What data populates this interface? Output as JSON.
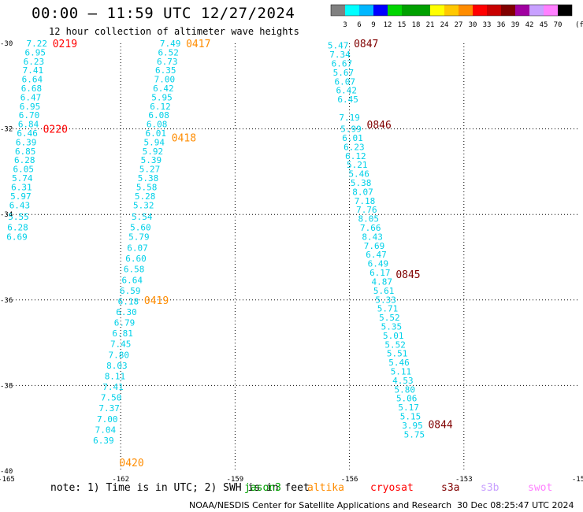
{
  "header": {
    "title": "00:00 – 11:59 UTC 12/27/2024",
    "subtitle": "12 hour collection of altimeter wave heights"
  },
  "colorbar": {
    "unit": "(ft)",
    "labels": [
      "3",
      "6",
      "9",
      "12",
      "15",
      "18",
      "21",
      "24",
      "27",
      "30",
      "33",
      "36",
      "39",
      "42",
      "45",
      "70"
    ],
    "colors": [
      "#808080",
      "#00ffff",
      "#00b7ff",
      "#0000ff",
      "#00d600",
      "#00a000",
      "#00a000",
      "#ffff00",
      "#ffc800",
      "#ff8c00",
      "#ff0000",
      "#c80000",
      "#800000",
      "#a000a0",
      "#c8a0ff",
      "#ff80ff",
      "#000000"
    ]
  },
  "footer": {
    "note": "note: 1) Time is in UTC; 2) SWH is in feet",
    "credit": "NOAA/NESDIS Center for Satellite Applications and Research",
    "timestamp": "30 Dec 08:25:47 UTC 2024"
  },
  "legend": [
    {
      "name": "jason3",
      "color": "#00a000"
    },
    {
      "name": "altika",
      "color": "#ff8c00"
    },
    {
      "name": "cryosat",
      "color": "#ff0000"
    },
    {
      "name": "s3a",
      "color": "#800000"
    },
    {
      "name": "s3b",
      "color": "#c8a0ff"
    },
    {
      "name": "swot",
      "color": "#ff80ff"
    }
  ],
  "map": {
    "x_ticks": [
      "-165",
      "-162",
      "-159",
      "-156",
      "-153",
      "-15"
    ],
    "y_ticks": [
      "-30",
      "-32",
      "-34",
      "-36",
      "-38",
      "-40"
    ],
    "lon_range": [
      -165,
      -150
    ],
    "lat_range": [
      -30,
      -40
    ]
  },
  "tracks": [
    {
      "satellite": "cryosat",
      "color": "#ff0000",
      "times": [
        {
          "label": "0219",
          "lat": -30.0
        },
        {
          "label": "0220",
          "lat": -32.0
        }
      ],
      "points": [
        {
          "lon": -164.2,
          "lat": -30.0,
          "value": "7.22",
          "color": "#00d0e8"
        },
        {
          "lon": -164.24,
          "lat": -30.21,
          "value": "6.95",
          "color": "#00d0e8"
        },
        {
          "lon": -164.28,
          "lat": -30.42,
          "value": "6.23",
          "color": "#00d0e8"
        },
        {
          "lon": -164.3,
          "lat": -30.63,
          "value": "7.41",
          "color": "#00d0e8"
        },
        {
          "lon": -164.32,
          "lat": -30.84,
          "value": "6.64",
          "color": "#00d0e8"
        },
        {
          "lon": -164.34,
          "lat": -31.05,
          "value": "6.68",
          "color": "#00d0e8"
        },
        {
          "lon": -164.36,
          "lat": -31.26,
          "value": "6.47",
          "color": "#00d0e8"
        },
        {
          "lon": -164.38,
          "lat": -31.47,
          "value": "6.95",
          "color": "#00d0e8"
        },
        {
          "lon": -164.4,
          "lat": -31.68,
          "value": "6.70",
          "color": "#00d0e8"
        },
        {
          "lon": -164.42,
          "lat": -31.89,
          "value": "6.84",
          "color": "#00d0e8"
        },
        {
          "lon": -164.45,
          "lat": -32.1,
          "value": "6.46",
          "color": "#00d0e8"
        },
        {
          "lon": -164.48,
          "lat": -32.31,
          "value": "6.39",
          "color": "#00d0e8"
        },
        {
          "lon": -164.5,
          "lat": -32.52,
          "value": "6.85",
          "color": "#00d0e8"
        },
        {
          "lon": -164.52,
          "lat": -32.73,
          "value": "6.28",
          "color": "#00d0e8"
        },
        {
          "lon": -164.55,
          "lat": -32.94,
          "value": "6.05",
          "color": "#00d0e8"
        },
        {
          "lon": -164.58,
          "lat": -33.15,
          "value": "5.74",
          "color": "#00d0e8"
        },
        {
          "lon": -164.6,
          "lat": -33.36,
          "value": "6.31",
          "color": "#00d0e8"
        },
        {
          "lon": -164.62,
          "lat": -33.57,
          "value": "5.97",
          "color": "#00d0e8"
        },
        {
          "lon": -164.65,
          "lat": -33.78,
          "value": "6.43",
          "color": "#00d0e8"
        },
        {
          "lon": -164.68,
          "lat": -34.05,
          "value": "5.55",
          "color": "#00d0e8"
        },
        {
          "lon": -164.7,
          "lat": -34.3,
          "value": "6.28",
          "color": "#00d0e8"
        },
        {
          "lon": -164.72,
          "lat": -34.52,
          "value": "6.69",
          "color": "#00d0e8"
        }
      ]
    },
    {
      "satellite": "altika",
      "color": "#ff8c00",
      "times": [
        {
          "label": "0417",
          "lat": -30.0
        },
        {
          "label": "0418",
          "lat": -32.2
        },
        {
          "label": "0419",
          "lat": -36.0
        },
        {
          "label": "0420",
          "lat": -39.8
        }
      ],
      "points": [
        {
          "lon": -160.7,
          "lat": -30.0,
          "value": "7.49",
          "color": "#00d0e8"
        },
        {
          "lon": -160.75,
          "lat": -30.21,
          "value": "6.52",
          "color": "#00d0e8"
        },
        {
          "lon": -160.78,
          "lat": -30.42,
          "value": "6.73",
          "color": "#00d0e8"
        },
        {
          "lon": -160.82,
          "lat": -30.63,
          "value": "6.35",
          "color": "#00d0e8"
        },
        {
          "lon": -160.85,
          "lat": -30.84,
          "value": "7.00",
          "color": "#00d0e8"
        },
        {
          "lon": -160.88,
          "lat": -31.05,
          "value": "6.42",
          "color": "#00d0e8"
        },
        {
          "lon": -160.92,
          "lat": -31.26,
          "value": "5.95",
          "color": "#00d0e8"
        },
        {
          "lon": -160.96,
          "lat": -31.47,
          "value": "6.12",
          "color": "#00d0e8"
        },
        {
          "lon": -161.0,
          "lat": -31.68,
          "value": "6.08",
          "color": "#00d0e8"
        },
        {
          "lon": -161.05,
          "lat": -31.89,
          "value": "6.08",
          "color": "#00d0e8"
        },
        {
          "lon": -161.08,
          "lat": -32.1,
          "value": "6.01",
          "color": "#00d0e8"
        },
        {
          "lon": -161.12,
          "lat": -32.31,
          "value": "5.94",
          "color": "#00d0e8"
        },
        {
          "lon": -161.16,
          "lat": -32.52,
          "value": "5.92",
          "color": "#00d0e8"
        },
        {
          "lon": -161.2,
          "lat": -32.73,
          "value": "5.39",
          "color": "#00d0e8"
        },
        {
          "lon": -161.24,
          "lat": -32.94,
          "value": "5.27",
          "color": "#00d0e8"
        },
        {
          "lon": -161.28,
          "lat": -33.15,
          "value": "5.38",
          "color": "#00d0e8"
        },
        {
          "lon": -161.32,
          "lat": -33.36,
          "value": "5.58",
          "color": "#00d0e8"
        },
        {
          "lon": -161.36,
          "lat": -33.57,
          "value": "5.28",
          "color": "#00d0e8"
        },
        {
          "lon": -161.4,
          "lat": -33.78,
          "value": "5.32",
          "color": "#00d0e8"
        },
        {
          "lon": -161.44,
          "lat": -34.05,
          "value": "5.54",
          "color": "#00d0e8"
        },
        {
          "lon": -161.48,
          "lat": -34.3,
          "value": "5.60",
          "color": "#00d0e8"
        },
        {
          "lon": -161.52,
          "lat": -34.52,
          "value": "5.79",
          "color": "#00d0e8"
        },
        {
          "lon": -161.56,
          "lat": -34.78,
          "value": "6.07",
          "color": "#00d0e8"
        },
        {
          "lon": -161.6,
          "lat": -35.03,
          "value": "6.60",
          "color": "#00d0e8"
        },
        {
          "lon": -161.65,
          "lat": -35.28,
          "value": "6.58",
          "color": "#00d0e8"
        },
        {
          "lon": -161.7,
          "lat": -35.53,
          "value": "6.64",
          "color": "#00d0e8"
        },
        {
          "lon": -161.75,
          "lat": -35.78,
          "value": "6.59",
          "color": "#00d0e8"
        },
        {
          "lon": -161.8,
          "lat": -36.03,
          "value": "6.18",
          "color": "#00d0e8"
        },
        {
          "lon": -161.85,
          "lat": -36.28,
          "value": "6.30",
          "color": "#00d0e8"
        },
        {
          "lon": -161.9,
          "lat": -36.53,
          "value": "6.79",
          "color": "#00d0e8"
        },
        {
          "lon": -161.95,
          "lat": -36.78,
          "value": "6.81",
          "color": "#00d0e8"
        },
        {
          "lon": -162.0,
          "lat": -37.03,
          "value": "7.45",
          "color": "#00d0e8"
        },
        {
          "lon": -162.05,
          "lat": -37.28,
          "value": "7.80",
          "color": "#00d0e8"
        },
        {
          "lon": -162.1,
          "lat": -37.53,
          "value": "8.03",
          "color": "#00d0e8"
        },
        {
          "lon": -162.15,
          "lat": -37.78,
          "value": "8.11",
          "color": "#00d0e8"
        },
        {
          "lon": -162.2,
          "lat": -38.03,
          "value": "7.41",
          "color": "#00d0e8"
        },
        {
          "lon": -162.25,
          "lat": -38.28,
          "value": "7.50",
          "color": "#00d0e8"
        },
        {
          "lon": -162.3,
          "lat": -38.53,
          "value": "7.37",
          "color": "#00d0e8"
        },
        {
          "lon": -162.35,
          "lat": -38.78,
          "value": "7.00",
          "color": "#00d0e8"
        },
        {
          "lon": -162.4,
          "lat": -39.03,
          "value": "7.04",
          "color": "#00d0e8"
        },
        {
          "lon": -162.45,
          "lat": -39.28,
          "value": "6.39",
          "color": "#00d0e8"
        }
      ]
    },
    {
      "satellite": "s3a",
      "color": "#800000",
      "times": [
        {
          "label": "0847",
          "lat": -30.0
        },
        {
          "label": "0846",
          "lat": -31.9
        },
        {
          "label": "0845",
          "lat": -35.4
        },
        {
          "label": "0844",
          "lat": -38.9
        }
      ],
      "points": [
        {
          "lon": -156.3,
          "lat": -30.05,
          "value": "5.47",
          "color": "#00d0e8"
        },
        {
          "lon": -156.25,
          "lat": -30.26,
          "value": "7.34",
          "color": "#00d0e8"
        },
        {
          "lon": -156.2,
          "lat": -30.47,
          "value": "6.67",
          "color": "#00d0e8"
        },
        {
          "lon": -156.16,
          "lat": -30.68,
          "value": "5.67",
          "color": "#00d0e8"
        },
        {
          "lon": -156.12,
          "lat": -30.89,
          "value": "6.07",
          "color": "#00d0e8"
        },
        {
          "lon": -156.08,
          "lat": -31.1,
          "value": "6.42",
          "color": "#00d0e8"
        },
        {
          "lon": -156.04,
          "lat": -31.31,
          "value": "6.45",
          "color": "#00d0e8"
        },
        {
          "lon": -156.0,
          "lat": -31.73,
          "value": "7.19",
          "color": "#00d0e8"
        },
        {
          "lon": -155.96,
          "lat": -32.0,
          "value": "5.99",
          "color": "#00d0e8"
        },
        {
          "lon": -155.92,
          "lat": -32.21,
          "value": "6.01",
          "color": "#00d0e8"
        },
        {
          "lon": -155.88,
          "lat": -32.42,
          "value": "6.23",
          "color": "#00d0e8"
        },
        {
          "lon": -155.84,
          "lat": -32.63,
          "value": "6.12",
          "color": "#00d0e8"
        },
        {
          "lon": -155.8,
          "lat": -32.84,
          "value": "5.21",
          "color": "#00d0e8"
        },
        {
          "lon": -155.75,
          "lat": -33.05,
          "value": "5.46",
          "color": "#00d0e8"
        },
        {
          "lon": -155.7,
          "lat": -33.26,
          "value": "5.38",
          "color": "#00d0e8"
        },
        {
          "lon": -155.65,
          "lat": -33.47,
          "value": "8.07",
          "color": "#00d0e8"
        },
        {
          "lon": -155.6,
          "lat": -33.68,
          "value": "7.18",
          "color": "#00d0e8"
        },
        {
          "lon": -155.55,
          "lat": -33.89,
          "value": "7.76",
          "color": "#00d0e8"
        },
        {
          "lon": -155.5,
          "lat": -34.1,
          "value": "8.05",
          "color": "#00d0e8"
        },
        {
          "lon": -155.45,
          "lat": -34.31,
          "value": "7.66",
          "color": "#00d0e8"
        },
        {
          "lon": -155.4,
          "lat": -34.52,
          "value": "8.43",
          "color": "#00d0e8"
        },
        {
          "lon": -155.35,
          "lat": -34.73,
          "value": "7.69",
          "color": "#00d0e8"
        },
        {
          "lon": -155.3,
          "lat": -34.94,
          "value": "6.47",
          "color": "#00d0e8"
        },
        {
          "lon": -155.25,
          "lat": -35.15,
          "value": "6.49",
          "color": "#00d0e8"
        },
        {
          "lon": -155.2,
          "lat": -35.36,
          "value": "6.17",
          "color": "#00d0e8"
        },
        {
          "lon": -155.15,
          "lat": -35.57,
          "value": "4.87",
          "color": "#00d0e8"
        },
        {
          "lon": -155.1,
          "lat": -35.78,
          "value": "5.61",
          "color": "#00d0e8"
        },
        {
          "lon": -155.05,
          "lat": -35.99,
          "value": "5.33",
          "color": "#00d0e8"
        },
        {
          "lon": -155.0,
          "lat": -36.2,
          "value": "5.71",
          "color": "#00d0e8"
        },
        {
          "lon": -154.95,
          "lat": -36.41,
          "value": "5.52",
          "color": "#00d0e8"
        },
        {
          "lon": -154.9,
          "lat": -36.62,
          "value": "5.35",
          "color": "#00d0e8"
        },
        {
          "lon": -154.85,
          "lat": -36.83,
          "value": "5.01",
          "color": "#00d0e8"
        },
        {
          "lon": -154.8,
          "lat": -37.04,
          "value": "5.52",
          "color": "#00d0e8"
        },
        {
          "lon": -154.75,
          "lat": -37.25,
          "value": "5.51",
          "color": "#00d0e8"
        },
        {
          "lon": -154.7,
          "lat": -37.46,
          "value": "5.46",
          "color": "#00d0e8"
        },
        {
          "lon": -154.65,
          "lat": -37.67,
          "value": "5.11",
          "color": "#00d0e8"
        },
        {
          "lon": -154.6,
          "lat": -37.88,
          "value": "4.53",
          "color": "#00d0e8"
        },
        {
          "lon": -154.55,
          "lat": -38.09,
          "value": "5.80",
          "color": "#00d0e8"
        },
        {
          "lon": -154.5,
          "lat": -38.3,
          "value": "5.06",
          "color": "#00d0e8"
        },
        {
          "lon": -154.45,
          "lat": -38.51,
          "value": "5.17",
          "color": "#00d0e8"
        },
        {
          "lon": -154.4,
          "lat": -38.72,
          "value": "5.15",
          "color": "#00d0e8"
        },
        {
          "lon": -154.35,
          "lat": -38.93,
          "value": "3.95",
          "color": "#00d0e8"
        },
        {
          "lon": -154.3,
          "lat": -39.14,
          "value": "5.75",
          "color": "#00d0e8"
        }
      ]
    }
  ]
}
